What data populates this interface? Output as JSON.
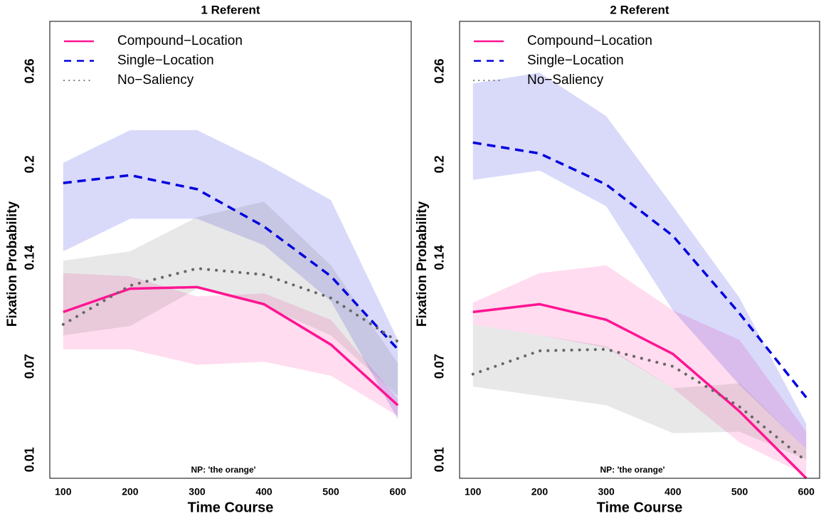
{
  "chart_data": [
    {
      "type": "line",
      "title": "1 Referent",
      "xlabel": "Time Course",
      "ylabel": "Fixation Probability",
      "annotation": "NP: 'the orange'",
      "x": [
        100,
        200,
        300,
        400,
        500,
        600
      ],
      "xlim": [
        80,
        620
      ],
      "xticks": [
        100,
        200,
        300,
        400,
        500,
        600
      ],
      "ylim": [
        -0.002,
        0.292
      ],
      "yticks": [
        0.01,
        0.07,
        0.14,
        0.2,
        0.26
      ],
      "legend": "top-left",
      "series": [
        {
          "name": "Compound−Location",
          "color": "#ff1493",
          "style": "solid",
          "values": [
            0.105,
            0.12,
            0.121,
            0.11,
            0.084,
            0.045
          ],
          "upper": [
            0.13,
            0.128,
            0.115,
            0.117,
            0.1,
            0.049
          ],
          "lower": [
            0.081,
            0.081,
            0.071,
            0.073,
            0.064,
            0.038
          ]
        },
        {
          "name": "Single−Location",
          "color": "#0000dd",
          "style": "dashed",
          "values": [
            0.188,
            0.193,
            0.184,
            0.16,
            0.128,
            0.081
          ],
          "upper": [
            0.201,
            0.222,
            0.222,
            0.201,
            0.177,
            0.087
          ],
          "lower": [
            0.144,
            0.165,
            0.165,
            0.148,
            0.112,
            0.036
          ]
        },
        {
          "name": "No−Saliency",
          "color": "#666666",
          "style": "dotted",
          "values": [
            0.097,
            0.122,
            0.133,
            0.129,
            0.114,
            0.086
          ],
          "upper": [
            0.138,
            0.144,
            0.166,
            0.176,
            0.135,
            0.072
          ],
          "lower": [
            0.09,
            0.096,
            0.12,
            0.109,
            0.09,
            0.051
          ]
        }
      ]
    },
    {
      "type": "line",
      "title": "2 Referent",
      "xlabel": "Time Course",
      "ylabel": "Fixation Probability",
      "annotation": "NP: 'the orange'",
      "x": [
        100,
        200,
        300,
        400,
        500,
        600
      ],
      "xlim": [
        80,
        620
      ],
      "xticks": [
        100,
        200,
        300,
        400,
        500,
        600
      ],
      "ylim": [
        -0.002,
        0.292
      ],
      "yticks": [
        0.01,
        0.07,
        0.14,
        0.2,
        0.26
      ],
      "legend": "top-left",
      "series": [
        {
          "name": "Compound−Location",
          "color": "#ff1493",
          "style": "solid",
          "values": [
            0.105,
            0.11,
            0.1,
            0.078,
            0.041,
            -0.002
          ],
          "upper": [
            0.111,
            0.13,
            0.135,
            0.106,
            0.087,
            0.028
          ],
          "lower": [
            0.097,
            0.09,
            0.082,
            0.056,
            0.021,
            0.0
          ]
        },
        {
          "name": "Single−Location",
          "color": "#0000dd",
          "style": "dashed",
          "values": [
            0.214,
            0.207,
            0.187,
            0.154,
            0.104,
            0.05
          ],
          "upper": [
            0.252,
            0.259,
            0.231,
            0.173,
            0.114,
            0.033
          ],
          "lower": [
            0.19,
            0.196,
            0.173,
            0.106,
            0.058,
            0.017
          ]
        },
        {
          "name": "No−Saliency",
          "color": "#666666",
          "style": "dotted",
          "values": [
            0.065,
            0.08,
            0.081,
            0.07,
            0.044,
            0.009
          ],
          "upper": [
            0.097,
            0.09,
            0.083,
            0.056,
            0.059,
            0.017
          ],
          "lower": [
            0.057,
            0.051,
            0.045,
            0.027,
            0.028,
            0.01
          ]
        }
      ]
    }
  ]
}
